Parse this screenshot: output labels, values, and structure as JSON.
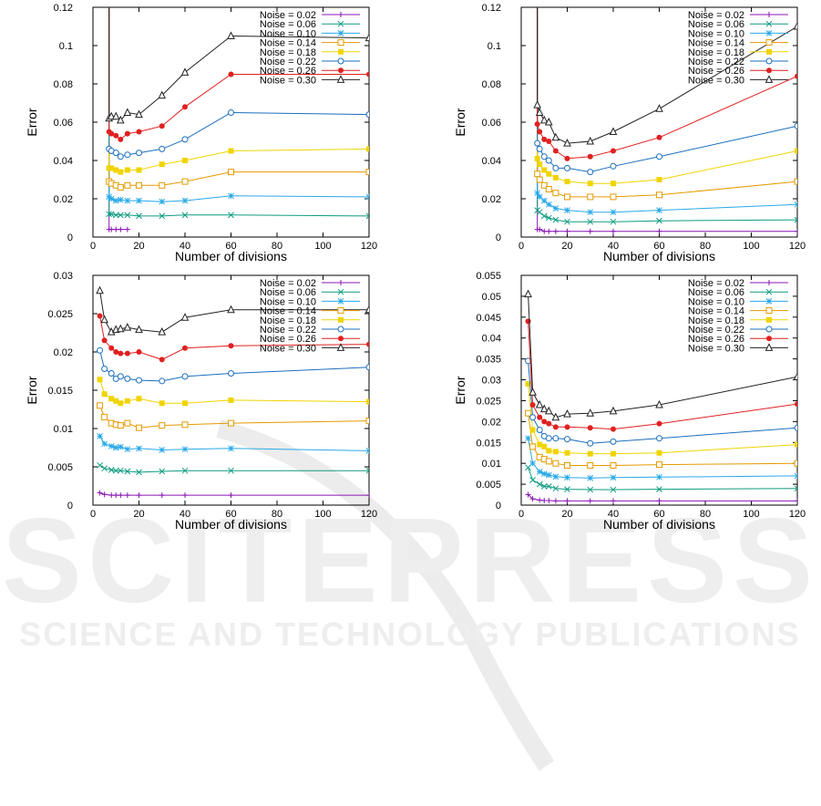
{
  "watermark": {
    "word": "SCITEPRESS",
    "tagline": "SCIENCE AND TECHNOLOGY PUBLICATIONS"
  },
  "series_style": [
    {
      "color": "#8a16b5",
      "marker": "plus"
    },
    {
      "color": "#0e9c80",
      "marker": "x"
    },
    {
      "color": "#29a9e8",
      "marker": "star"
    },
    {
      "color": "#e59a00",
      "marker": "square-open"
    },
    {
      "color": "#f0d400",
      "marker": "square-filled"
    },
    {
      "color": "#1b6fbd",
      "marker": "circle-open"
    },
    {
      "color": "#e02020",
      "marker": "circle-filled"
    },
    {
      "color": "#222222",
      "marker": "triangle-open"
    }
  ],
  "chart_data": [
    {
      "type": "line",
      "xlabel": "Number of divisions",
      "ylabel": "Error",
      "xlim": [
        0,
        120
      ],
      "ylim": [
        0,
        0.12
      ],
      "xticks": [
        "0",
        "20",
        "40",
        "60",
        "80",
        "100",
        "120"
      ],
      "yticks": [
        "0",
        "0.02",
        "0.04",
        "0.06",
        "0.08",
        "0.1",
        "0.12"
      ],
      "legend_position": "top-right",
      "x": [
        7,
        8,
        10,
        12,
        15,
        20,
        30,
        40,
        60,
        120
      ],
      "spike_to_top": true,
      "series": [
        {
          "name": "Noise = 0.02",
          "values": [
            0.004,
            0.004,
            0.004,
            0.004,
            0.004,
            null,
            null,
            null,
            null,
            null
          ]
        },
        {
          "name": "Noise = 0.06",
          "values": [
            0.012,
            0.012,
            0.0115,
            0.0115,
            0.0115,
            0.011,
            0.011,
            0.0115,
            0.0115,
            0.011
          ]
        },
        {
          "name": "Noise = 0.10",
          "values": [
            0.021,
            0.02,
            0.019,
            0.0195,
            0.019,
            0.019,
            0.0185,
            0.019,
            0.0215,
            0.021
          ]
        },
        {
          "name": "Noise = 0.14",
          "values": [
            0.029,
            0.028,
            0.027,
            0.026,
            0.027,
            0.027,
            0.027,
            0.029,
            0.034,
            0.034
          ]
        },
        {
          "name": "Noise = 0.18",
          "values": [
            0.036,
            0.036,
            0.035,
            0.034,
            0.035,
            0.035,
            0.038,
            0.04,
            0.045,
            0.046
          ]
        },
        {
          "name": "Noise = 0.22",
          "values": [
            0.046,
            0.045,
            0.044,
            0.042,
            0.043,
            0.044,
            0.046,
            0.051,
            0.065,
            0.064
          ]
        },
        {
          "name": "Noise = 0.26",
          "values": [
            0.055,
            0.054,
            0.053,
            0.051,
            0.054,
            0.055,
            0.058,
            0.068,
            0.085,
            0.085
          ]
        },
        {
          "name": "Noise = 0.30",
          "values": [
            0.062,
            0.063,
            0.063,
            0.061,
            0.065,
            0.064,
            0.074,
            0.086,
            0.105,
            0.104
          ]
        }
      ]
    },
    {
      "type": "line",
      "xlabel": "Number of divisions",
      "ylabel": "Error",
      "xlim": [
        0,
        120
      ],
      "ylim": [
        0,
        0.12
      ],
      "xticks": [
        "0",
        "20",
        "40",
        "60",
        "80",
        "100",
        "120"
      ],
      "yticks": [
        "0",
        "0.02",
        "0.04",
        "0.06",
        "0.08",
        "0.1",
        "0.12"
      ],
      "legend_position": "top-right",
      "x": [
        7,
        8,
        10,
        12,
        15,
        20,
        30,
        40,
        60,
        120
      ],
      "spike_to_top": true,
      "series": [
        {
          "name": "Noise = 0.02",
          "values": [
            0.004,
            0.004,
            0.003,
            0.003,
            0.003,
            0.003,
            0.003,
            0.003,
            0.003,
            0.003
          ]
        },
        {
          "name": "Noise = 0.06",
          "values": [
            0.014,
            0.013,
            0.011,
            0.01,
            0.009,
            0.008,
            0.008,
            0.008,
            0.0085,
            0.009
          ]
        },
        {
          "name": "Noise = 0.10",
          "values": [
            0.023,
            0.021,
            0.019,
            0.017,
            0.015,
            0.014,
            0.013,
            0.013,
            0.014,
            0.017
          ]
        },
        {
          "name": "Noise = 0.14",
          "values": [
            0.033,
            0.03,
            0.027,
            0.025,
            0.023,
            0.021,
            0.021,
            0.021,
            0.022,
            0.029
          ]
        },
        {
          "name": "Noise = 0.18",
          "values": [
            0.041,
            0.038,
            0.035,
            0.033,
            0.031,
            0.029,
            0.028,
            0.028,
            0.03,
            0.045
          ]
        },
        {
          "name": "Noise = 0.22",
          "values": [
            0.049,
            0.046,
            0.042,
            0.04,
            0.036,
            0.036,
            0.034,
            0.037,
            0.042,
            0.058
          ]
        },
        {
          "name": "Noise = 0.26",
          "values": [
            0.059,
            0.055,
            0.051,
            0.05,
            0.045,
            0.041,
            0.042,
            0.045,
            0.052,
            0.084
          ]
        },
        {
          "name": "Noise = 0.30",
          "values": [
            0.069,
            0.065,
            0.061,
            0.06,
            0.052,
            0.049,
            0.05,
            0.055,
            0.067,
            0.11
          ]
        }
      ]
    },
    {
      "type": "line",
      "xlabel": "Number of divisions",
      "ylabel": "Error",
      "xlim": [
        0,
        120
      ],
      "ylim": [
        0,
        0.03
      ],
      "xticks": [
        "0",
        "20",
        "40",
        "60",
        "80",
        "100",
        "120"
      ],
      "yticks": [
        "0",
        "0.005",
        "0.01",
        "0.015",
        "0.02",
        "0.025",
        "0.03"
      ],
      "legend_position": "top-right",
      "x": [
        3,
        5,
        8,
        10,
        12,
        15,
        20,
        30,
        40,
        60,
        120
      ],
      "spike_to_top": false,
      "series": [
        {
          "name": "Noise = 0.02",
          "values": [
            0.0016,
            0.0014,
            0.0013,
            0.0013,
            0.0013,
            0.0013,
            0.0013,
            0.0013,
            0.0013,
            0.0013,
            0.0013
          ]
        },
        {
          "name": "Noise = 0.06",
          "values": [
            0.0052,
            0.0048,
            0.0046,
            0.0045,
            0.0045,
            0.0044,
            0.0043,
            0.0044,
            0.0045,
            0.0045,
            0.0045
          ]
        },
        {
          "name": "Noise = 0.10",
          "values": [
            0.009,
            0.008,
            0.0077,
            0.0075,
            0.0076,
            0.0073,
            0.0074,
            0.0072,
            0.0073,
            0.0074,
            0.0071
          ]
        },
        {
          "name": "Noise = 0.14",
          "values": [
            0.013,
            0.0115,
            0.0107,
            0.0105,
            0.0104,
            0.0107,
            0.0101,
            0.0104,
            0.0105,
            0.0107,
            0.011
          ]
        },
        {
          "name": "Noise = 0.18",
          "values": [
            0.0164,
            0.0145,
            0.0139,
            0.0136,
            0.0133,
            0.0136,
            0.0139,
            0.0133,
            0.0133,
            0.0137,
            0.0135
          ]
        },
        {
          "name": "Noise = 0.22",
          "values": [
            0.0202,
            0.0178,
            0.0172,
            0.0165,
            0.0168,
            0.0165,
            0.0163,
            0.0162,
            0.0168,
            0.0172,
            0.018
          ]
        },
        {
          "name": "Noise = 0.26",
          "values": [
            0.0247,
            0.0215,
            0.0205,
            0.02,
            0.0198,
            0.0198,
            0.02,
            0.019,
            0.0205,
            0.0208,
            0.021
          ]
        },
        {
          "name": "Noise = 0.30",
          "values": [
            0.028,
            0.0242,
            0.0226,
            0.0229,
            0.023,
            0.0232,
            0.0229,
            0.0226,
            0.0245,
            0.0255,
            0.0255
          ]
        }
      ]
    },
    {
      "type": "line",
      "xlabel": "Number of divisions",
      "ylabel": "Error",
      "xlim": [
        0,
        120
      ],
      "ylim": [
        0,
        0.055
      ],
      "xticks": [
        "0",
        "20",
        "40",
        "60",
        "80",
        "100",
        "120"
      ],
      "yticks": [
        "0",
        "0.005",
        "0.01",
        "0.015",
        "0.02",
        "0.025",
        "0.03",
        "0.035",
        "0.04",
        "0.045",
        "0.05",
        "0.055"
      ],
      "legend_position": "top-right",
      "x": [
        3,
        5,
        8,
        10,
        12,
        15,
        20,
        30,
        40,
        60,
        120
      ],
      "spike_to_top": false,
      "series": [
        {
          "name": "Noise = 0.02",
          "values": [
            0.0025,
            0.0015,
            0.0012,
            0.0011,
            0.0011,
            0.001,
            0.001,
            0.001,
            0.001,
            0.001,
            0.001
          ]
        },
        {
          "name": "Noise = 0.06",
          "values": [
            0.009,
            0.006,
            0.005,
            0.0045,
            0.0045,
            0.004,
            0.0038,
            0.0037,
            0.0037,
            0.0038,
            0.004
          ]
        },
        {
          "name": "Noise = 0.10",
          "values": [
            0.016,
            0.01,
            0.008,
            0.0075,
            0.0072,
            0.0068,
            0.0066,
            0.0065,
            0.0066,
            0.0067,
            0.007
          ]
        },
        {
          "name": "Noise = 0.14",
          "values": [
            0.022,
            0.014,
            0.0115,
            0.011,
            0.0105,
            0.01,
            0.0095,
            0.0095,
            0.0095,
            0.0097,
            0.01
          ]
        },
        {
          "name": "Noise = 0.18",
          "values": [
            0.029,
            0.018,
            0.0145,
            0.014,
            0.013,
            0.0128,
            0.0125,
            0.0123,
            0.0123,
            0.0125,
            0.0145
          ]
        },
        {
          "name": "Noise = 0.22",
          "values": [
            0.0345,
            0.021,
            0.018,
            0.0165,
            0.016,
            0.016,
            0.0158,
            0.0148,
            0.0152,
            0.016,
            0.0185
          ]
        },
        {
          "name": "Noise = 0.26",
          "values": [
            0.044,
            0.024,
            0.021,
            0.02,
            0.0195,
            0.0187,
            0.0187,
            0.0185,
            0.0182,
            0.0195,
            0.0242
          ]
        },
        {
          "name": "Noise = 0.30",
          "values": [
            0.0505,
            0.027,
            0.024,
            0.023,
            0.0225,
            0.021,
            0.0218,
            0.022,
            0.0225,
            0.024,
            0.0307
          ]
        }
      ]
    }
  ]
}
